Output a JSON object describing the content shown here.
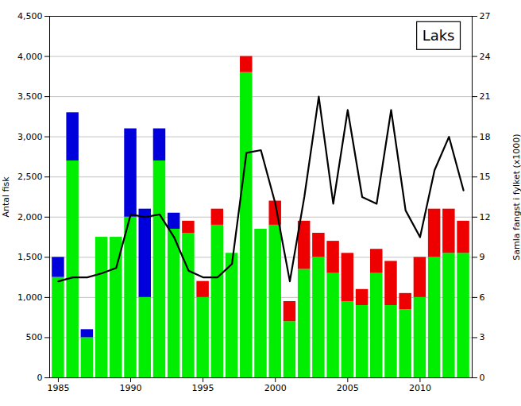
{
  "chart_data": {
    "type": "bar",
    "title": "Laks",
    "ylabel": "Antal fisk",
    "y2label": "Samla fangst i fylket (x1000)",
    "x": [
      1985,
      1986,
      1987,
      1988,
      1989,
      1990,
      1991,
      1992,
      1993,
      1994,
      1995,
      1996,
      1997,
      1998,
      1999,
      2000,
      2001,
      2002,
      2003,
      2004,
      2005,
      2006,
      2007,
      2008,
      2009,
      2010,
      2011,
      2012,
      2013
    ],
    "series": [
      {
        "color": "#00ee00",
        "values": [
          1250,
          2700,
          500,
          1750,
          1750,
          2000,
          1000,
          2700,
          1850,
          1800,
          1000,
          1900,
          1550,
          3800,
          1850,
          1900,
          700,
          1350,
          1500,
          1300,
          950,
          900,
          1300,
          900,
          850,
          1000,
          1500,
          1550,
          1550
        ]
      },
      {
        "color": "#ee0000",
        "values": [
          0,
          0,
          0,
          0,
          0,
          0,
          0,
          0,
          0,
          150,
          200,
          200,
          0,
          200,
          0,
          300,
          250,
          600,
          300,
          400,
          600,
          200,
          300,
          550,
          200,
          500,
          600,
          550,
          400
        ]
      },
      {
        "color": "#0000dd",
        "values": [
          250,
          600,
          100,
          0,
          0,
          1100,
          1100,
          400,
          200,
          0,
          0,
          0,
          0,
          0,
          0,
          0,
          0,
          0,
          0,
          0,
          0,
          0,
          0,
          0,
          0,
          0,
          0,
          0,
          0
        ]
      },
      {
        "type": "line",
        "axis": "y2",
        "color": "#000000",
        "values": [
          7.2,
          7.5,
          7.5,
          7.8,
          8.2,
          12.2,
          12.0,
          12.2,
          10.5,
          8.0,
          7.5,
          7.5,
          8.5,
          16.8,
          17.0,
          13.0,
          7.2,
          13.5,
          21.0,
          13.0,
          20.0,
          13.5,
          13.0,
          20.0,
          12.5,
          10.5,
          15.5,
          18.0,
          14.0
        ]
      }
    ],
    "stacked": true,
    "xlim": [
      1984.4,
      2013.6
    ],
    "xticks": [
      1985,
      1990,
      1995,
      2000,
      2005,
      2010
    ],
    "ylim": [
      0,
      4500
    ],
    "yticks": [
      0,
      500,
      1000,
      1500,
      2000,
      2500,
      3000,
      3500,
      4000,
      4500
    ],
    "y2lim": [
      0,
      27
    ],
    "y2ticks": [
      0,
      3,
      6,
      9,
      12,
      15,
      18,
      21,
      24,
      27
    ],
    "grid": true
  }
}
